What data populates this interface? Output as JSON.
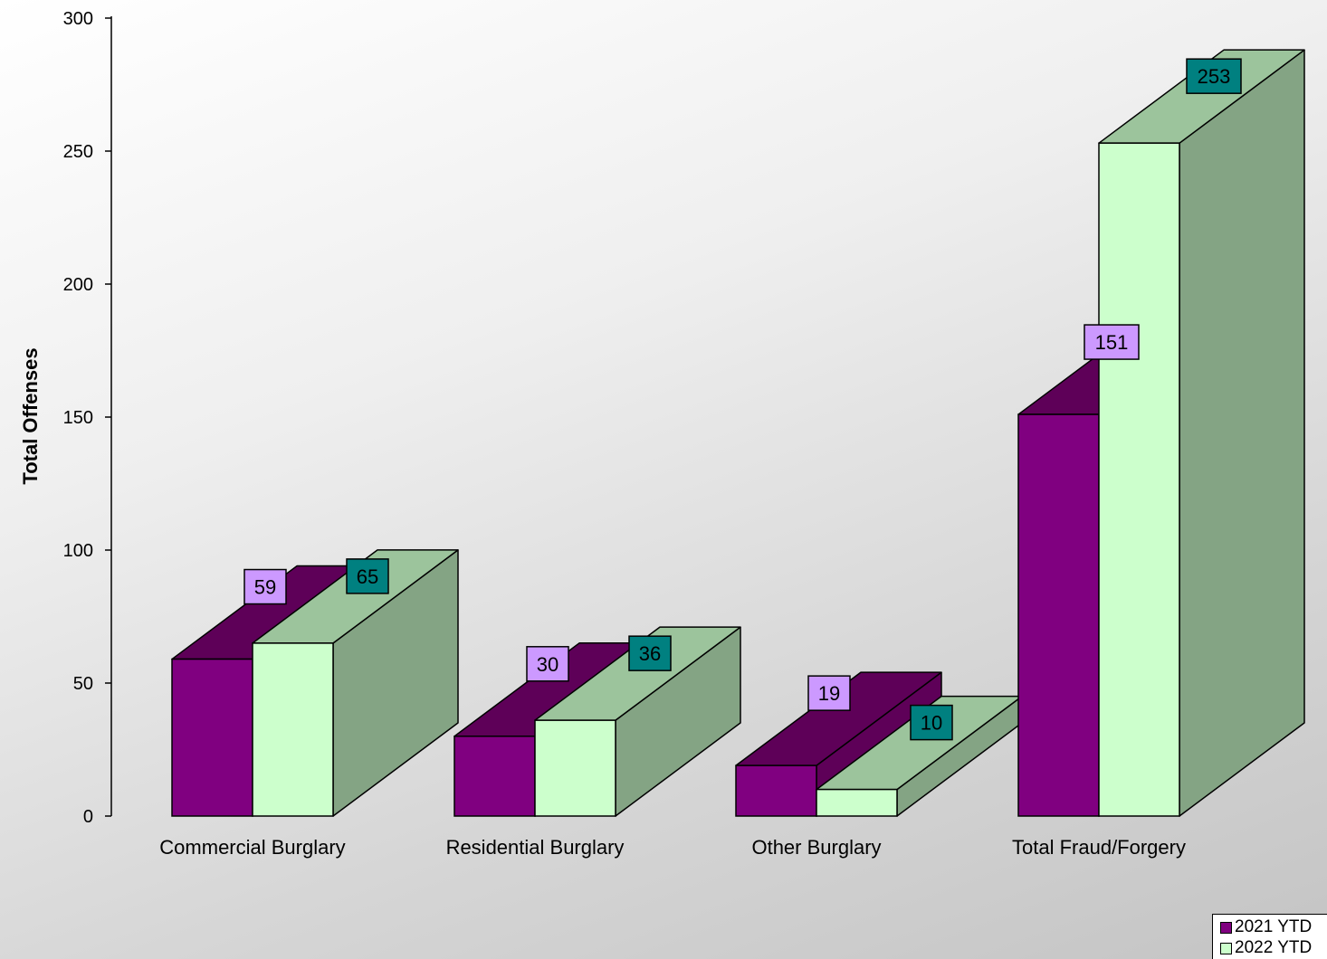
{
  "chart_data": {
    "type": "bar",
    "title": "",
    "xlabel": "",
    "ylabel": "Total Offenses",
    "categories": [
      "Commercial Burglary",
      "Residential Burglary",
      "Other Burglary",
      "Total Fraud/Forgery"
    ],
    "series": [
      {
        "name": "2021 YTD",
        "values": [
          59,
          30,
          19,
          151
        ]
      },
      {
        "name": "2022 YTD",
        "values": [
          65,
          36,
          10,
          253
        ]
      }
    ],
    "ylim": [
      0,
      300
    ],
    "yticks": [
      0,
      50,
      100,
      150,
      200,
      250,
      300
    ],
    "grid": false,
    "legend_position": "bottom-right",
    "colors": {
      "series_2021_front": "#800080",
      "series_2021_top": "#5e0058",
      "series_2022_front": "#ccffcc",
      "series_2022_top": "#9cc49c",
      "series_2022_side": "#84a484",
      "label_2021_bg": "#cc99ff",
      "label_2022_bg": "#008080"
    }
  }
}
